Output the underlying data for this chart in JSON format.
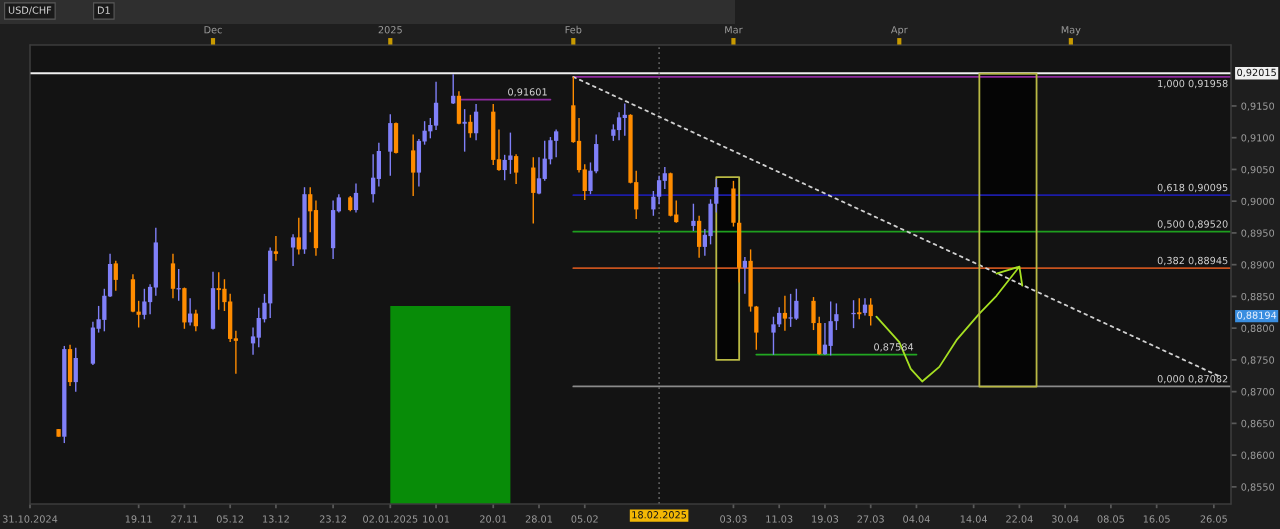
{
  "chart_data": {
    "type": "candlestick",
    "title": "USD/CHF",
    "subtitle": "D1",
    "x": [
      "2024-11-05",
      "2024-11-06",
      "2024-11-07",
      "2024-11-08",
      "2024-11-11",
      "2024-11-12",
      "2024-11-13",
      "2024-11-14",
      "2024-11-15",
      "2024-11-18",
      "2024-11-19",
      "2024-11-20",
      "2024-11-21",
      "2024-11-22",
      "2024-11-25",
      "2024-11-26",
      "2024-11-27",
      "2024-11-28",
      "2024-11-29",
      "2024-12-02",
      "2024-12-03",
      "2024-12-04",
      "2024-12-05",
      "2024-12-06",
      "2024-12-09",
      "2024-12-10",
      "2024-12-11",
      "2024-12-12",
      "2024-12-13",
      "2024-12-16",
      "2024-12-17",
      "2024-12-18",
      "2024-12-19",
      "2024-12-20",
      "2024-12-23",
      "2024-12-24",
      "2024-12-26",
      "2024-12-27",
      "2024-12-30",
      "2024-12-31",
      "2025-01-02",
      "2025-01-03",
      "2025-01-06",
      "2025-01-07",
      "2025-01-08",
      "2025-01-09",
      "2025-01-10",
      "2025-01-13",
      "2025-01-14",
      "2025-01-15",
      "2025-01-16",
      "2025-01-17",
      "2025-01-20",
      "2025-01-21",
      "2025-01-22",
      "2025-01-23",
      "2025-01-24",
      "2025-01-27",
      "2025-01-28",
      "2025-01-29",
      "2025-01-30",
      "2025-01-31",
      "2025-02-03",
      "2025-02-04",
      "2025-02-05",
      "2025-02-06",
      "2025-02-07",
      "2025-02-10",
      "2025-02-11",
      "2025-02-12",
      "2025-02-13",
      "2025-02-14",
      "2025-02-17",
      "2025-02-18",
      "2025-02-19",
      "2025-02-20",
      "2025-02-21",
      "2025-02-24",
      "2025-02-25",
      "2025-02-26",
      "2025-02-27",
      "2025-02-28",
      "2025-03-03",
      "2025-03-04",
      "2025-03-05",
      "2025-03-06",
      "2025-03-07",
      "2025-03-10",
      "2025-03-11",
      "2025-03-12",
      "2025-03-13",
      "2025-03-14",
      "2025-03-17",
      "2025-03-18",
      "2025-03-19",
      "2025-03-20",
      "2025-03-21",
      "2025-03-24",
      "2025-03-25",
      "2025-03-26",
      "2025-03-27"
    ],
    "ohlc": [
      [
        0.8641,
        0.8641,
        0.8629,
        0.8629
      ],
      [
        0.8629,
        0.8772,
        0.8619,
        0.8767
      ],
      [
        0.8767,
        0.8774,
        0.8709,
        0.8715
      ],
      [
        0.8715,
        0.8769,
        0.87,
        0.8753
      ],
      [
        0.8744,
        0.881,
        0.8742,
        0.8801
      ],
      [
        0.8799,
        0.8835,
        0.8793,
        0.8814
      ],
      [
        0.8813,
        0.8862,
        0.8795,
        0.8851
      ],
      [
        0.885,
        0.8917,
        0.8849,
        0.8901
      ],
      [
        0.8902,
        0.8906,
        0.8859,
        0.8876
      ],
      [
        0.8877,
        0.8885,
        0.8825,
        0.8826
      ],
      [
        0.8826,
        0.8843,
        0.8801,
        0.8821
      ],
      [
        0.8821,
        0.8862,
        0.8814,
        0.8842
      ],
      [
        0.8841,
        0.8869,
        0.8822,
        0.8865
      ],
      [
        0.8864,
        0.8958,
        0.8851,
        0.8935
      ],
      [
        0.8902,
        0.8917,
        0.8847,
        0.8862
      ],
      [
        0.8861,
        0.8893,
        0.8843,
        0.8863
      ],
      [
        0.8863,
        0.8864,
        0.8799,
        0.8809
      ],
      [
        0.8809,
        0.8847,
        0.8804,
        0.8823
      ],
      [
        0.8823,
        0.8829,
        0.8795,
        0.8803
      ],
      [
        0.8799,
        0.8889,
        0.8798,
        0.8863
      ],
      [
        0.8863,
        0.8888,
        0.8829,
        0.886
      ],
      [
        0.8862,
        0.8877,
        0.8827,
        0.8841
      ],
      [
        0.8842,
        0.8854,
        0.8778,
        0.8783
      ],
      [
        0.8784,
        0.8796,
        0.8728,
        0.878
      ],
      [
        0.8776,
        0.8801,
        0.8758,
        0.8787
      ],
      [
        0.8785,
        0.8832,
        0.877,
        0.8816
      ],
      [
        0.8814,
        0.8854,
        0.8809,
        0.884
      ],
      [
        0.8839,
        0.8927,
        0.8816,
        0.8922
      ],
      [
        0.8921,
        0.8945,
        0.8906,
        0.8917
      ],
      [
        0.8927,
        0.8948,
        0.8898,
        0.8943
      ],
      [
        0.8943,
        0.8974,
        0.8916,
        0.8924
      ],
      [
        0.8924,
        0.9022,
        0.8917,
        0.9011
      ],
      [
        0.9011,
        0.9022,
        0.8951,
        0.8984
      ],
      [
        0.8986,
        0.9001,
        0.8914,
        0.8926
      ],
      [
        0.8926,
        0.9001,
        0.8909,
        0.8986
      ],
      [
        0.8984,
        0.9011,
        0.8982,
        0.9006
      ],
      [
        0.9006,
        0.9008,
        0.8984,
        0.8986
      ],
      [
        0.8986,
        0.9028,
        0.8982,
        0.9013
      ],
      [
        0.9011,
        0.9074,
        0.8998,
        0.9037
      ],
      [
        0.9035,
        0.9092,
        0.9023,
        0.9079
      ],
      [
        0.9078,
        0.9137,
        0.904,
        0.9123
      ],
      [
        0.9123,
        0.9124,
        0.9075,
        0.9076
      ],
      [
        0.908,
        0.9105,
        0.9008,
        0.9045
      ],
      [
        0.9045,
        0.9098,
        0.9023,
        0.9095
      ],
      [
        0.9094,
        0.9126,
        0.9089,
        0.9111
      ],
      [
        0.911,
        0.9131,
        0.9099,
        0.912
      ],
      [
        0.9119,
        0.9188,
        0.9112,
        0.9155
      ],
      [
        0.9154,
        0.92,
        0.9153,
        0.9166
      ],
      [
        0.9166,
        0.9173,
        0.9121,
        0.9122
      ],
      [
        0.9122,
        0.9145,
        0.9078,
        0.9125
      ],
      [
        0.9125,
        0.9136,
        0.91,
        0.9107
      ],
      [
        0.9107,
        0.9153,
        0.9096,
        0.9141
      ],
      [
        0.9141,
        0.9153,
        0.9057,
        0.9065
      ],
      [
        0.9066,
        0.9113,
        0.9048,
        0.9049
      ],
      [
        0.9049,
        0.9073,
        0.9033,
        0.9065
      ],
      [
        0.9065,
        0.9108,
        0.9043,
        0.9072
      ],
      [
        0.9071,
        0.9074,
        0.9027,
        0.9045
      ],
      [
        0.9053,
        0.9069,
        0.8965,
        0.9013
      ],
      [
        0.9012,
        0.9069,
        0.9011,
        0.9036
      ],
      [
        0.9035,
        0.9095,
        0.9032,
        0.9067
      ],
      [
        0.9066,
        0.9101,
        0.9058,
        0.9096
      ],
      [
        0.9095,
        0.9113,
        0.9069,
        0.911
      ],
      [
        0.9151,
        0.9196,
        0.9092,
        0.9093
      ],
      [
        0.9095,
        0.9131,
        0.9045,
        0.9049
      ],
      [
        0.905,
        0.9058,
        0.9002,
        0.9016
      ],
      [
        0.9016,
        0.9061,
        0.9011,
        0.9048
      ],
      [
        0.9047,
        0.9105,
        0.9044,
        0.909
      ],
      [
        0.9103,
        0.9121,
        0.9095,
        0.9113
      ],
      [
        0.9112,
        0.914,
        0.9096,
        0.9132
      ],
      [
        0.9131,
        0.9154,
        0.9103,
        0.9136
      ],
      [
        0.9136,
        0.9137,
        0.9028,
        0.9029
      ],
      [
        0.903,
        0.9048,
        0.8972,
        0.8987
      ],
      [
        0.8987,
        0.9016,
        0.8977,
        0.9007
      ],
      [
        0.9007,
        0.904,
        0.8995,
        0.9033
      ],
      [
        0.9032,
        0.9054,
        0.9019,
        0.9044
      ],
      [
        0.9044,
        0.9045,
        0.8976,
        0.8977
      ],
      [
        0.8979,
        0.9001,
        0.8966,
        0.8967
      ],
      [
        0.8961,
        0.8996,
        0.8953,
        0.8969
      ],
      [
        0.8969,
        0.8977,
        0.8911,
        0.8928
      ],
      [
        0.8928,
        0.8956,
        0.8914,
        0.8947
      ],
      [
        0.8945,
        0.9003,
        0.8932,
        0.8996
      ],
      [
        0.8996,
        0.9035,
        0.8982,
        0.9022
      ],
      [
        0.902,
        0.9032,
        0.896,
        0.8966
      ],
      [
        0.8966,
        0.897,
        0.8872,
        0.8895
      ],
      [
        0.8895,
        0.8912,
        0.8854,
        0.8906
      ],
      [
        0.8906,
        0.8924,
        0.8826,
        0.8834
      ],
      [
        0.8834,
        0.8835,
        0.8766,
        0.8793
      ],
      [
        0.8793,
        0.8818,
        0.8758,
        0.8806
      ],
      [
        0.8806,
        0.8833,
        0.8802,
        0.8824
      ],
      [
        0.8824,
        0.8851,
        0.8796,
        0.8815
      ],
      [
        0.8815,
        0.8854,
        0.8802,
        0.8817
      ],
      [
        0.8815,
        0.8862,
        0.8813,
        0.8843
      ],
      [
        0.8843,
        0.8849,
        0.8797,
        0.8808
      ],
      [
        0.8808,
        0.8818,
        0.8758,
        0.8759
      ],
      [
        0.8759,
        0.8808,
        0.8758,
        0.8774
      ],
      [
        0.8772,
        0.8842,
        0.8757,
        0.8811
      ],
      [
        0.8811,
        0.8839,
        0.8797,
        0.8822
      ],
      [
        0.8822,
        0.8844,
        0.88,
        0.8824
      ],
      [
        0.8825,
        0.8847,
        0.8814,
        0.8822
      ],
      [
        0.8824,
        0.8847,
        0.882,
        0.8837
      ],
      [
        0.8837,
        0.8847,
        0.8804,
        0.8819
      ]
    ],
    "colors": [
      "#ff8c00",
      "#8080f8",
      "#ff8c00",
      "#8080f8",
      "#8080f8",
      "#8080f8",
      "#8080f8",
      "#8080f8",
      "#ff8c00",
      "#ff8c00",
      "#ff8c00",
      "#8080f8",
      "#8080f8",
      "#8080f8",
      "#ff8c00",
      "#8080f8",
      "#ff8c00",
      "#8080f8",
      "#ff8c00",
      "#8080f8",
      "#ff8c00",
      "#ff8c00",
      "#ff8c00",
      "#ff8c00",
      "#8080f8",
      "#8080f8",
      "#8080f8",
      "#8080f8",
      "#ff8c00",
      "#8080f8",
      "#ff8c00",
      "#8080f8",
      "#ff8c00",
      "#ff8c00",
      "#8080f8",
      "#8080f8",
      "#ff8c00",
      "#8080f8",
      "#8080f8",
      "#8080f8",
      "#8080f8",
      "#ff8c00",
      "#ff8c00",
      "#8080f8",
      "#8080f8",
      "#8080f8",
      "#8080f8",
      "#8080f8",
      "#ff8c00",
      "#8080f8",
      "#ff8c00",
      "#8080f8",
      "#ff8c00",
      "#ff8c00",
      "#8080f8",
      "#8080f8",
      "#ff8c00",
      "#ff8c00",
      "#8080f8",
      "#8080f8",
      "#8080f8",
      "#8080f8",
      "#ff8c00",
      "#ff8c00",
      "#ff8c00",
      "#8080f8",
      "#8080f8",
      "#8080f8",
      "#8080f8",
      "#8080f8",
      "#ff8c00",
      "#ff8c00",
      "#8080f8",
      "#8080f8",
      "#8080f8",
      "#ff8c00",
      "#ff8c00",
      "#8080f8",
      "#ff8c00",
      "#8080f8",
      "#8080f8",
      "#8080f8",
      "#ff8c00",
      "#ff8c00",
      "#8080f8",
      "#ff8c00",
      "#ff8c00",
      "#8080f8",
      "#8080f8",
      "#ff8c00",
      "#8080f8",
      "#8080f8",
      "#ff8c00",
      "#ff8c00",
      "#8080f8",
      "#8080f8",
      "#8080f8",
      "#8080f8",
      "#ff8c00",
      "#8080f8",
      "#ff8c00"
    ],
    "series": [
      {
        "type": "area",
        "x": [
          "2025-01-02",
          "2025-01-23"
        ],
        "values": [
          0.8835,
          0.8835
        ],
        "color": "#088c08"
      },
      {
        "type": "area",
        "x": [
          "2025-02-28",
          "2025-02-28",
          "2025-03-04",
          "2025-03-04",
          "2025-02-28"
        ],
        "values": [
          0.9038,
          0.875,
          0.875,
          0.9038,
          0.9038
        ],
        "color": "#b9b944"
      },
      {
        "type": "area",
        "x": [
          "2025-04-15",
          "2025-04-15",
          "2025-04-25",
          "2025-04-25",
          "2025-04-15"
        ],
        "values": [
          0.9201,
          0.8708,
          0.8708,
          0.9201,
          0.9201
        ],
        "color": "#b9b944"
      },
      {
        "type": "line",
        "name": "1,000 0,91958",
        "x": [
          "2025-02-03",
          "2025-05-29"
        ],
        "values": [
          0.91958,
          0.91958
        ],
        "color": "#8e2a9e"
      },
      {
        "type": "line",
        "name": "0,618 0,90095",
        "x": [
          "2025-02-03",
          "2025-05-29"
        ],
        "values": [
          0.90095,
          0.90095
        ],
        "color": "#1c1ca8"
      },
      {
        "type": "line",
        "name": "0,500 0,89520",
        "x": [
          "2025-02-03",
          "2025-05-29"
        ],
        "values": [
          0.8952,
          0.8952
        ],
        "color": "#1e9e1e"
      },
      {
        "type": "line",
        "name": "0,382 0,88945",
        "x": [
          "2025-02-03",
          "2025-05-29"
        ],
        "values": [
          0.88945,
          0.88945
        ],
        "color": "#c8531e"
      },
      {
        "type": "line",
        "name": "0,000 0,87082",
        "x": [
          "2025-02-03",
          "2025-05-29"
        ],
        "values": [
          0.87082,
          0.87082
        ],
        "color": "#8a8a8a"
      },
      {
        "type": "line",
        "name": "0,91601",
        "x": [
          "2025-01-14",
          "2025-01-30"
        ],
        "values": [
          0.91601,
          0.91601
        ],
        "color": "#8e2a9e"
      },
      {
        "type": "line",
        "name": "0,87584",
        "x": [
          "2025-03-07",
          "2025-04-04"
        ],
        "values": [
          0.87584,
          0.87584
        ],
        "color": "#22a822"
      },
      {
        "type": "line",
        "line_style": "dotted",
        "x": [
          "2025-02-03",
          "2025-05-27"
        ],
        "values": [
          0.91958,
          0.8724
        ],
        "color": "#d0d0d0"
      },
      {
        "type": "line",
        "x": [
          "2025-03-28",
          "2025-04-01",
          "2025-04-03",
          "2025-04-05",
          "2025-04-08",
          "2025-04-11",
          "2025-04-15",
          "2025-04-18",
          "2025-04-22",
          "2025-04-18",
          "2025-04-22",
          "2025-04-22T12:00"
        ],
        "values": [
          0.8818,
          0.8778,
          0.8736,
          0.8716,
          0.8739,
          0.8781,
          0.8823,
          0.8851,
          0.8897,
          0.8886,
          0.8897,
          0.8867
        ],
        "color": "#a6e022"
      }
    ],
    "ref_lines": [
      {
        "axis": "y",
        "value": 0.92015,
        "label": "0,92015",
        "color": "#f0f0f0"
      },
      {
        "axis": "x",
        "value": "2025-02-18",
        "label": "18.02.2025",
        "color": "#777777",
        "line_style": "dotted"
      }
    ],
    "annotations": [
      "0,88194"
    ],
    "xlim": [
      "2024-10-31",
      "2025-05-29"
    ],
    "xticks": [
      {
        "value": "2024-10-31",
        "label": "31.10.2024"
      },
      {
        "value": "2024-11-19",
        "label": "19.11"
      },
      {
        "value": "2024-11-27",
        "label": "27.11"
      },
      {
        "value": "2024-12-05",
        "label": "05.12"
      },
      {
        "value": "2024-12-13",
        "label": "13.12"
      },
      {
        "value": "2024-12-23",
        "label": "23.12"
      },
      {
        "value": "2025-01-02",
        "label": "02.01.2025"
      },
      {
        "value": "2025-01-10",
        "label": "10.01"
      },
      {
        "value": "2025-01-20",
        "label": "20.01"
      },
      {
        "value": "2025-01-28",
        "label": "28.01"
      },
      {
        "value": "2025-02-05",
        "label": "05.02"
      },
      {
        "value": "2025-03-03",
        "label": "03.03"
      },
      {
        "value": "2025-03-11",
        "label": "11.03"
      },
      {
        "value": "2025-03-19",
        "label": "19.03"
      },
      {
        "value": "2025-03-27",
        "label": "27.03"
      },
      {
        "value": "2025-04-04",
        "label": "04.04"
      },
      {
        "value": "2025-04-14",
        "label": "14.04"
      },
      {
        "value": "2025-04-22",
        "label": "22.04"
      },
      {
        "value": "2025-04-30",
        "label": "30.04"
      },
      {
        "value": "2025-05-08",
        "label": "08.05"
      },
      {
        "value": "2025-05-16",
        "label": "16.05"
      },
      {
        "value": "2025-05-26",
        "label": "26.05"
      }
    ],
    "x2lim": [
      "2024-10-31",
      "2025-05-29"
    ],
    "x2ticks": [
      {
        "value": "2024-12-02",
        "label": "Dec"
      },
      {
        "value": "2025-01-02",
        "label": "2025"
      },
      {
        "value": "2025-02-03",
        "label": "Feb"
      },
      {
        "value": "2025-03-03",
        "label": "Mar"
      },
      {
        "value": "2025-04-01",
        "label": "Apr"
      },
      {
        "value": "2025-05-01",
        "label": "May"
      }
    ],
    "ylim": [
      0.8523,
      0.9246
    ],
    "yticks": [
      {
        "value": 0.855,
        "label": "0,8550"
      },
      {
        "value": 0.86,
        "label": "0,8600"
      },
      {
        "value": 0.865,
        "label": "0,8650"
      },
      {
        "value": 0.87,
        "label": "0,8700"
      },
      {
        "value": 0.875,
        "label": "0,8750"
      },
      {
        "value": 0.88,
        "label": "0,8800"
      },
      {
        "value": 0.885,
        "label": "0,8850"
      },
      {
        "value": 0.89,
        "label": "0,8900"
      },
      {
        "value": 0.895,
        "label": "0,8950"
      },
      {
        "value": 0.9,
        "label": "0,9000"
      },
      {
        "value": 0.905,
        "label": "0,9050"
      },
      {
        "value": 0.91,
        "label": "0,9100"
      },
      {
        "value": 0.915,
        "label": "0,9150"
      }
    ]
  }
}
